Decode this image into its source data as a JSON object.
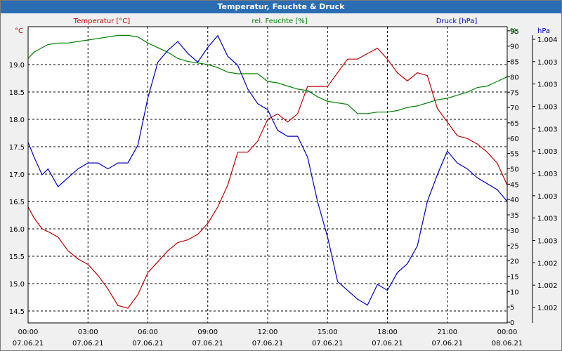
{
  "window": {
    "title": "Temperatur, Feuchte & Druck"
  },
  "colors": {
    "temperature": "#c00000",
    "humidity": "#008000",
    "pressure": "#0000c0",
    "grid": "#000000",
    "plot_bg": "#ffffff"
  },
  "chart_data": {
    "type": "line",
    "grid": true,
    "x": {
      "range": [
        0,
        24
      ],
      "ticks": [
        {
          "time": "00:00",
          "date": "07.06.21"
        },
        {
          "time": "03:00",
          "date": "07.06.21"
        },
        {
          "time": "06:00",
          "date": "07.06.21"
        },
        {
          "time": "09:00",
          "date": "07.06.21"
        },
        {
          "time": "12:00",
          "date": "07.06.21"
        },
        {
          "time": "15:00",
          "date": "07.06.21"
        },
        {
          "time": "18:00",
          "date": "07.06.21"
        },
        {
          "time": "21:00",
          "date": "07.06.21"
        },
        {
          "time": "00:00",
          "date": "08.06.21"
        }
      ]
    },
    "axes": {
      "temperature": {
        "label": "Temperatur [°C]",
        "unit": "°C",
        "range": [
          14.5,
          19.5
        ],
        "ticks": [
          "14.5",
          "15.0",
          "15.5",
          "16.0",
          "16.5",
          "17.0",
          "17.5",
          "18.0",
          "18.5",
          "19.0"
        ]
      },
      "humidity": {
        "label": "rel. Feuchte [%]",
        "unit": "%",
        "range": [
          0,
          95
        ],
        "ticks": [
          "0",
          "5",
          "10",
          "15",
          "20",
          "25",
          "30",
          "35",
          "40",
          "45",
          "50",
          "55",
          "60",
          "65",
          "70",
          "75",
          "80",
          "85",
          "90",
          "95"
        ]
      },
      "pressure": {
        "label": "Druck [hPa]",
        "unit": "hPa",
        "ticks": [
          "1.002",
          "1.002",
          "1.002",
          "1.003",
          "1.003",
          "1.003",
          "1.003",
          "1.003",
          "1.003",
          "1.003",
          "1.003",
          "1.003",
          "1.004"
        ]
      }
    },
    "series": [
      {
        "name": "Temperatur [°C]",
        "axis": "temperature",
        "x": [
          0,
          0.3,
          0.7,
          1.0,
          1.5,
          2.0,
          2.5,
          3.0,
          3.5,
          4.0,
          4.5,
          5.0,
          5.5,
          6.0,
          6.5,
          7.0,
          7.5,
          8.0,
          8.5,
          9.0,
          9.5,
          10.0,
          10.5,
          11.0,
          11.5,
          12.0,
          12.5,
          13.0,
          13.5,
          14.0,
          14.5,
          15.0,
          15.5,
          16.0,
          16.5,
          17.0,
          17.5,
          18.0,
          18.5,
          19.0,
          19.5,
          20.0,
          20.5,
          21.0,
          21.5,
          22.0,
          22.5,
          23.0,
          23.5,
          24.0
        ],
        "values": [
          16.4,
          16.2,
          16.0,
          15.95,
          15.85,
          15.6,
          15.45,
          15.35,
          15.15,
          14.9,
          14.6,
          14.55,
          14.8,
          15.2,
          15.4,
          15.6,
          15.75,
          15.8,
          15.9,
          16.1,
          16.4,
          16.8,
          17.4,
          17.4,
          17.6,
          18.0,
          18.1,
          17.95,
          18.1,
          18.6,
          18.6,
          18.6,
          18.85,
          19.1,
          19.1,
          19.2,
          19.3,
          19.1,
          18.85,
          18.7,
          18.85,
          18.8,
          18.2,
          17.95,
          17.7,
          17.65,
          17.55,
          17.4,
          17.2,
          16.8
        ]
      },
      {
        "name": "rel. Feuchte [%]",
        "axis": "humidity",
        "x": [
          0,
          0.3,
          0.7,
          1.0,
          1.5,
          2.0,
          2.5,
          3.0,
          3.5,
          4.0,
          4.5,
          5.0,
          5.5,
          6.0,
          6.5,
          7.0,
          7.5,
          8.0,
          8.5,
          9.0,
          9.5,
          10.0,
          10.5,
          11.0,
          11.5,
          12.0,
          12.5,
          13.0,
          13.5,
          14.0,
          14.5,
          15.0,
          15.5,
          16.0,
          16.5,
          17.0,
          17.5,
          18.0,
          18.5,
          19.0,
          19.5,
          20.0,
          20.5,
          21.0,
          21.5,
          22.0,
          22.5,
          23.0,
          23.5,
          24.0
        ],
        "values": [
          86,
          88,
          89.5,
          90.5,
          91,
          91,
          91.5,
          92,
          92.5,
          93,
          93.5,
          93.5,
          93,
          91,
          89.5,
          88,
          86,
          85,
          84.5,
          84,
          83,
          81.5,
          81,
          81,
          81,
          78.5,
          78,
          77,
          76,
          75.5,
          73.5,
          72,
          71.5,
          71,
          68,
          68,
          68.5,
          68.5,
          69,
          70,
          70.5,
          71.5,
          72.5,
          73,
          74,
          75,
          76.5,
          77,
          78.5,
          80
        ]
      },
      {
        "name": "Druck [hPa]",
        "axis": "pressure",
        "x": [
          0,
          0.3,
          0.7,
          1.0,
          1.5,
          2.0,
          2.5,
          3.0,
          3.5,
          4.0,
          4.5,
          5.0,
          5.5,
          6.0,
          6.5,
          7.0,
          7.5,
          8.0,
          8.5,
          9.0,
          9.5,
          10.0,
          10.5,
          11.0,
          11.5,
          12.0,
          12.5,
          13.0,
          13.5,
          14.0,
          14.5,
          15.0,
          15.5,
          16.0,
          16.5,
          17.0,
          17.5,
          18.0,
          18.5,
          19.0,
          19.5,
          20.0,
          20.5,
          21.0,
          21.5,
          22.0,
          22.5,
          23.0,
          23.5,
          24.0
        ],
        "values": [
          61,
          56,
          50,
          52,
          46,
          49,
          52,
          54,
          54,
          52,
          54,
          54,
          60,
          76,
          88,
          92,
          95,
          91,
          88,
          93,
          97,
          90,
          87,
          79,
          74,
          72,
          65,
          63,
          63,
          56,
          41,
          29,
          14,
          11,
          8,
          6,
          13,
          11,
          17,
          20,
          26,
          41,
          50,
          58,
          54,
          52,
          49,
          47,
          45,
          41
        ]
      }
    ]
  }
}
